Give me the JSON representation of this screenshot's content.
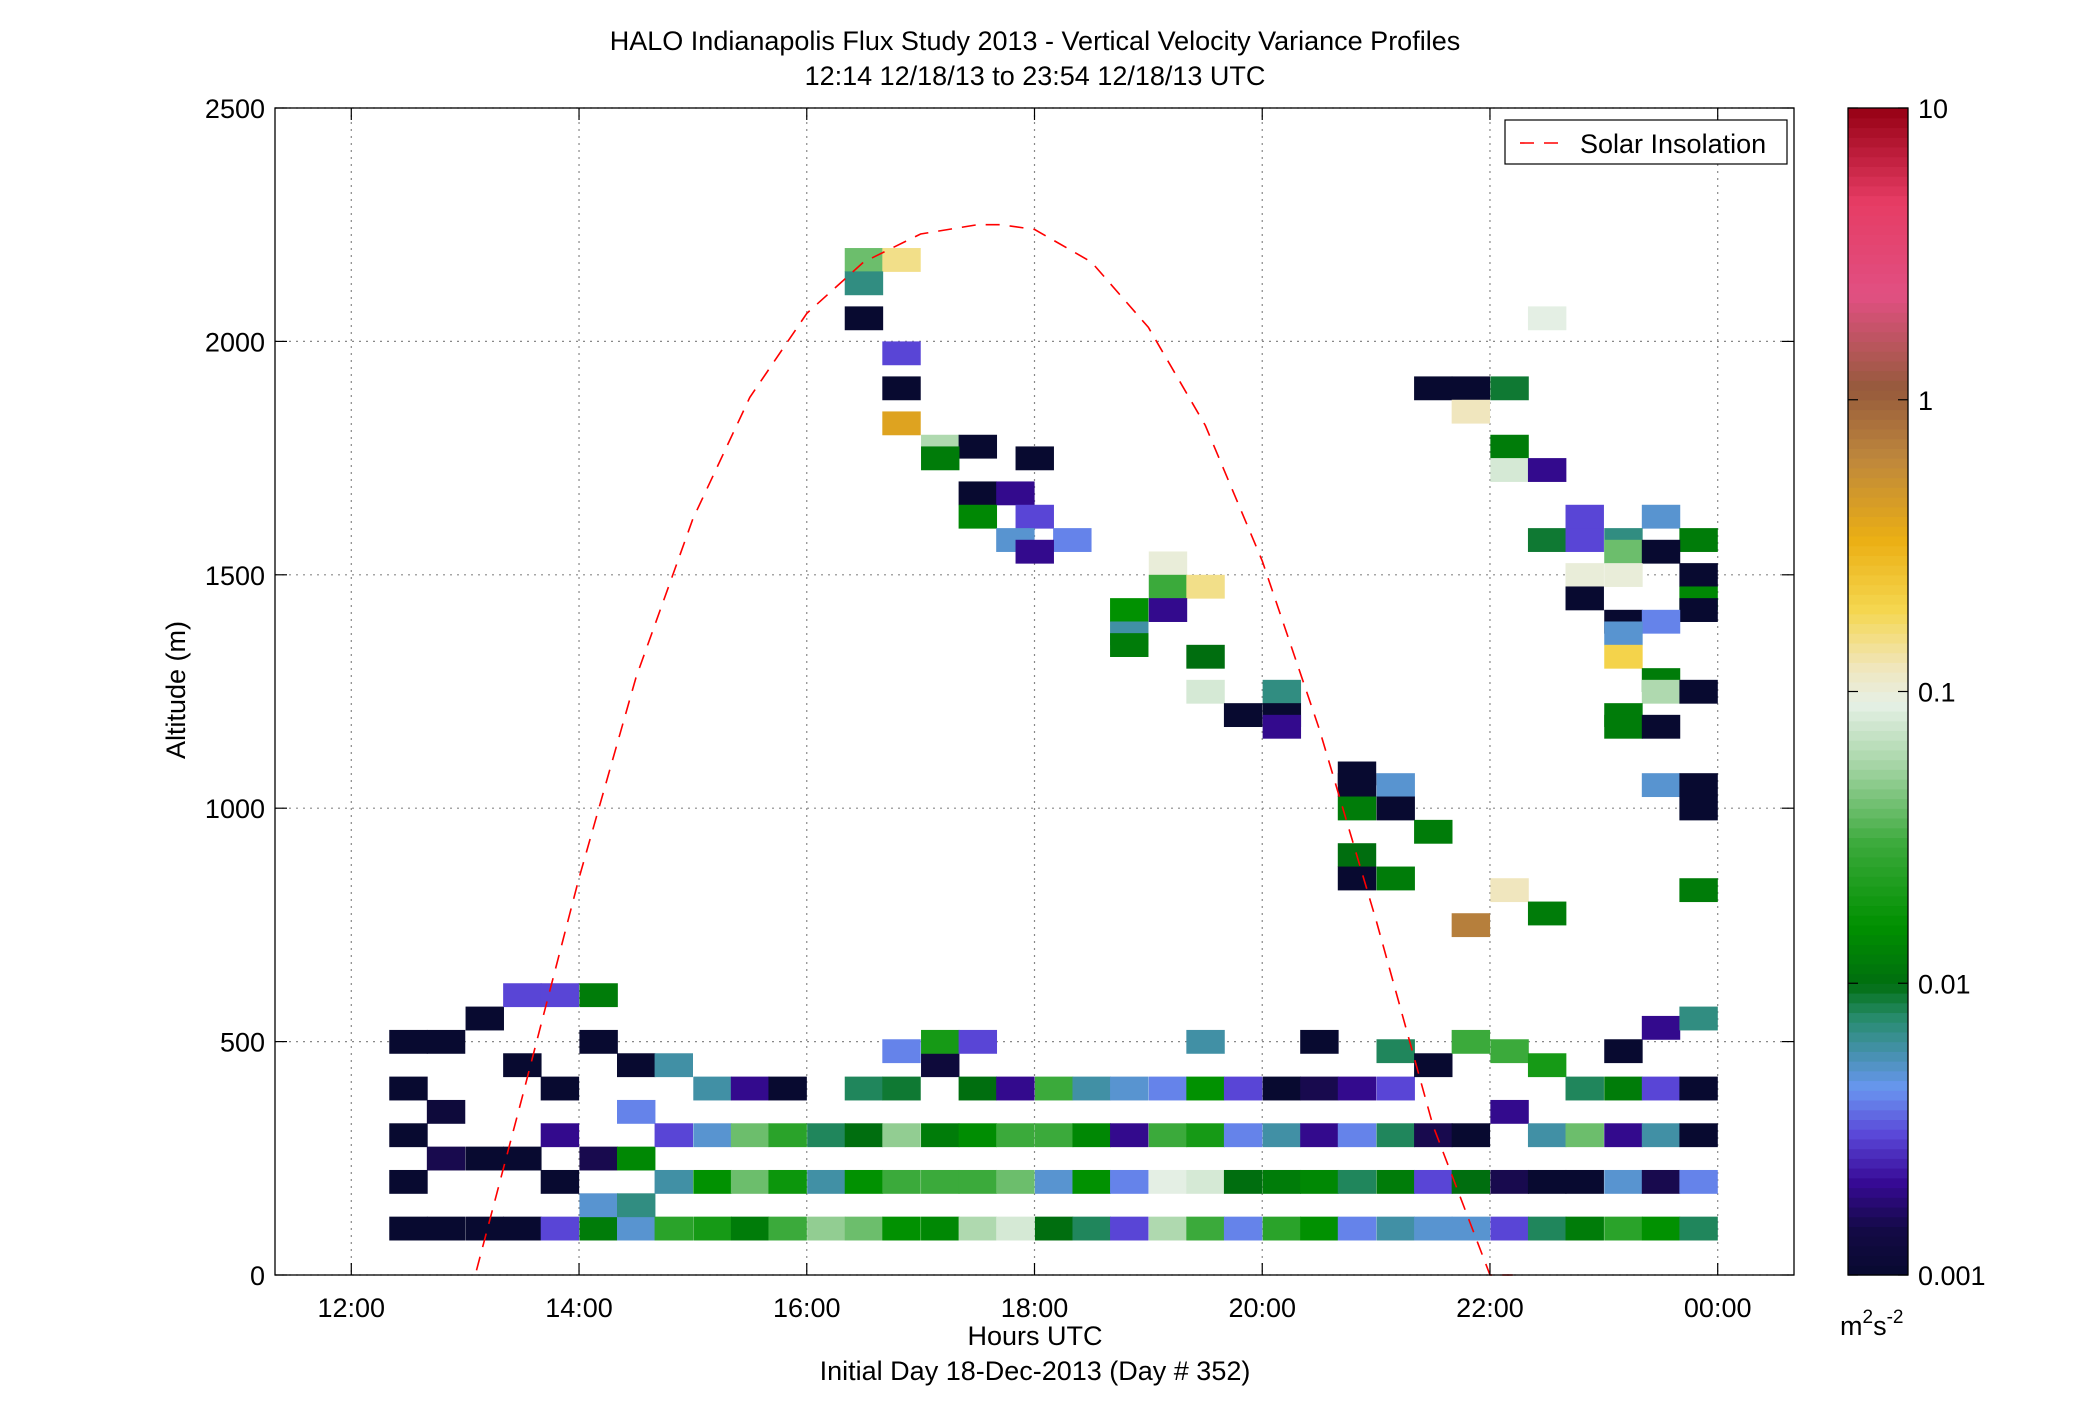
{
  "chart_data": {
    "type": "heatmap",
    "title": "HALO Indianapolis Flux Study 2013 - Vertical Velocity Variance Profiles",
    "subtitle": "12:14 12/18/13 to 23:54 12/18/13  UTC",
    "xlabel": "Hours UTC",
    "xlabel2": "Initial Day 18-Dec-2013 (Day # 352)",
    "ylabel": "Altitude (m)",
    "xlim": [
      11.33,
      24.67
    ],
    "ylim": [
      0,
      2500
    ],
    "x_ticks": [
      12,
      14,
      16,
      18,
      20,
      22,
      24
    ],
    "x_tick_labels": [
      "12:00",
      "14:00",
      "16:00",
      "18:00",
      "20:00",
      "22:00",
      "00:00"
    ],
    "y_ticks": [
      0,
      500,
      1000,
      1500,
      2000,
      2500
    ],
    "y_tick_labels": [
      "0",
      "500",
      "1000",
      "1500",
      "2000",
      "2500"
    ],
    "grid": true,
    "legend": {
      "placement": "top-right",
      "entries": [
        "Solar Insolation"
      ]
    },
    "colorbar": {
      "scale": "log",
      "range": [
        0.001,
        10
      ],
      "ticks": [
        0.001,
        0.01,
        0.1,
        1,
        10
      ],
      "tick_labels": [
        "0.001",
        "0.01",
        "0.1",
        "1",
        "10"
      ],
      "unit_base": "m",
      "unit_exp1": "2",
      "unit_mid": "s",
      "unit_exp2": "-2"
    },
    "solar_insolation_curve": {
      "color": "#ff0000",
      "style": "dashed",
      "x": [
        13.1,
        13.5,
        14,
        14.5,
        15,
        15.5,
        16,
        16.5,
        17,
        17.5,
        17.7,
        18,
        18.5,
        19,
        19.5,
        20,
        20.5,
        21,
        21.5,
        22,
        22.2
      ],
      "y": [
        10,
        380,
        850,
        1280,
        1620,
        1880,
        2060,
        2170,
        2230,
        2250,
        2250,
        2240,
        2170,
        2030,
        1820,
        1530,
        1170,
        760,
        320,
        -110,
        -300
      ]
    },
    "cell_width_hours": 0.333,
    "cell_height_m": 50,
    "cells": [
      {
        "t": 12.5,
        "z": 100,
        "v": 0.001
      },
      {
        "t": 12.5,
        "z": 200,
        "v": 0.001
      },
      {
        "t": 12.5,
        "z": 300,
        "v": 0.001
      },
      {
        "t": 12.5,
        "z": 400,
        "v": 0.001
      },
      {
        "t": 12.5,
        "z": 500,
        "v": 0.001
      },
      {
        "t": 12.83,
        "z": 100,
        "v": 0.001
      },
      {
        "t": 12.83,
        "z": 250,
        "v": 0.0015
      },
      {
        "t": 12.83,
        "z": 350,
        "v": 0.0012
      },
      {
        "t": 12.83,
        "z": 500,
        "v": 0.001
      },
      {
        "t": 13.17,
        "z": 100,
        "v": 0.001
      },
      {
        "t": 13.17,
        "z": 250,
        "v": 0.001
      },
      {
        "t": 13.17,
        "z": 550,
        "v": 0.001
      },
      {
        "t": 13.5,
        "z": 100,
        "v": 0.001
      },
      {
        "t": 13.5,
        "z": 250,
        "v": 0.001
      },
      {
        "t": 13.5,
        "z": 450,
        "v": 0.001
      },
      {
        "t": 13.5,
        "z": 600,
        "v": 0.003
      },
      {
        "t": 13.83,
        "z": 100,
        "v": 0.003
      },
      {
        "t": 13.83,
        "z": 200,
        "v": 0.001
      },
      {
        "t": 13.83,
        "z": 300,
        "v": 0.002
      },
      {
        "t": 13.83,
        "z": 400,
        "v": 0.001
      },
      {
        "t": 13.83,
        "z": 600,
        "v": 0.003
      },
      {
        "t": 14.17,
        "z": 100,
        "v": 0.012
      },
      {
        "t": 14.17,
        "z": 150,
        "v": 0.005
      },
      {
        "t": 14.17,
        "z": 250,
        "v": 0.0015
      },
      {
        "t": 14.17,
        "z": 500,
        "v": 0.001
      },
      {
        "t": 14.17,
        "z": 600,
        "v": 0.012
      },
      {
        "t": 14.5,
        "z": 100,
        "v": 0.005
      },
      {
        "t": 14.5,
        "z": 150,
        "v": 0.007
      },
      {
        "t": 14.5,
        "z": 250,
        "v": 0.014
      },
      {
        "t": 14.5,
        "z": 350,
        "v": 0.004
      },
      {
        "t": 14.5,
        "z": 450,
        "v": 0.001
      },
      {
        "t": 14.83,
        "z": 100,
        "v": 0.025
      },
      {
        "t": 14.83,
        "z": 200,
        "v": 0.006
      },
      {
        "t": 14.83,
        "z": 300,
        "v": 0.003
      },
      {
        "t": 14.83,
        "z": 450,
        "v": 0.006
      },
      {
        "t": 15.17,
        "z": 100,
        "v": 0.02
      },
      {
        "t": 15.17,
        "z": 200,
        "v": 0.016
      },
      {
        "t": 15.17,
        "z": 300,
        "v": 0.005
      },
      {
        "t": 15.17,
        "z": 400,
        "v": 0.006
      },
      {
        "t": 15.5,
        "z": 100,
        "v": 0.012
      },
      {
        "t": 15.5,
        "z": 200,
        "v": 0.04
      },
      {
        "t": 15.5,
        "z": 300,
        "v": 0.04
      },
      {
        "t": 15.5,
        "z": 400,
        "v": 0.002
      },
      {
        "t": 15.83,
        "z": 100,
        "v": 0.03
      },
      {
        "t": 15.83,
        "z": 200,
        "v": 0.018
      },
      {
        "t": 15.83,
        "z": 300,
        "v": 0.025
      },
      {
        "t": 15.83,
        "z": 400,
        "v": 0.001
      },
      {
        "t": 16.17,
        "z": 100,
        "v": 0.05
      },
      {
        "t": 16.17,
        "z": 200,
        "v": 0.006
      },
      {
        "t": 16.17,
        "z": 300,
        "v": 0.008
      },
      {
        "t": 16.5,
        "z": 100,
        "v": 0.04
      },
      {
        "t": 16.5,
        "z": 200,
        "v": 0.016
      },
      {
        "t": 16.5,
        "z": 300,
        "v": 0.01
      },
      {
        "t": 16.5,
        "z": 400,
        "v": 0.008
      },
      {
        "t": 16.83,
        "z": 100,
        "v": 0.016
      },
      {
        "t": 16.83,
        "z": 200,
        "v": 0.03
      },
      {
        "t": 16.83,
        "z": 300,
        "v": 0.05
      },
      {
        "t": 16.83,
        "z": 400,
        "v": 0.009
      },
      {
        "t": 16.83,
        "z": 480,
        "v": 0.004
      },
      {
        "t": 17.17,
        "z": 100,
        "v": 0.014
      },
      {
        "t": 17.17,
        "z": 200,
        "v": 0.03
      },
      {
        "t": 17.17,
        "z": 300,
        "v": 0.012
      },
      {
        "t": 17.17,
        "z": 450,
        "v": 0.0012
      },
      {
        "t": 17.17,
        "z": 500,
        "v": 0.02
      },
      {
        "t": 17.5,
        "z": 100,
        "v": 0.06
      },
      {
        "t": 17.5,
        "z": 200,
        "v": 0.03
      },
      {
        "t": 17.5,
        "z": 300,
        "v": 0.015
      },
      {
        "t": 17.5,
        "z": 400,
        "v": 0.01
      },
      {
        "t": 17.5,
        "z": 500,
        "v": 0.003
      },
      {
        "t": 17.83,
        "z": 100,
        "v": 0.08
      },
      {
        "t": 17.83,
        "z": 200,
        "v": 0.04
      },
      {
        "t": 17.83,
        "z": 300,
        "v": 0.03
      },
      {
        "t": 17.83,
        "z": 400,
        "v": 0.002
      },
      {
        "t": 18.17,
        "z": 100,
        "v": 0.01
      },
      {
        "t": 18.17,
        "z": 200,
        "v": 0.005
      },
      {
        "t": 18.17,
        "z": 300,
        "v": 0.03
      },
      {
        "t": 18.17,
        "z": 400,
        "v": 0.03
      },
      {
        "t": 18.5,
        "z": 100,
        "v": 0.008
      },
      {
        "t": 18.5,
        "z": 200,
        "v": 0.016
      },
      {
        "t": 18.5,
        "z": 300,
        "v": 0.014
      },
      {
        "t": 18.5,
        "z": 400,
        "v": 0.006
      },
      {
        "t": 18.83,
        "z": 100,
        "v": 0.003
      },
      {
        "t": 18.83,
        "z": 200,
        "v": 0.004
      },
      {
        "t": 18.83,
        "z": 300,
        "v": 0.002
      },
      {
        "t": 18.83,
        "z": 400,
        "v": 0.005
      },
      {
        "t": 19.17,
        "z": 100,
        "v": 0.06
      },
      {
        "t": 19.17,
        "z": 200,
        "v": 0.09
      },
      {
        "t": 19.17,
        "z": 300,
        "v": 0.03
      },
      {
        "t": 19.17,
        "z": 400,
        "v": 0.004
      },
      {
        "t": 19.5,
        "z": 100,
        "v": 0.03
      },
      {
        "t": 19.5,
        "z": 200,
        "v": 0.08
      },
      {
        "t": 19.5,
        "z": 300,
        "v": 0.02
      },
      {
        "t": 19.5,
        "z": 400,
        "v": 0.016
      },
      {
        "t": 19.5,
        "z": 500,
        "v": 0.006
      },
      {
        "t": 19.83,
        "z": 100,
        "v": 0.004
      },
      {
        "t": 19.83,
        "z": 200,
        "v": 0.01
      },
      {
        "t": 19.83,
        "z": 300,
        "v": 0.004
      },
      {
        "t": 19.83,
        "z": 400,
        "v": 0.003
      },
      {
        "t": 20.17,
        "z": 100,
        "v": 0.025
      },
      {
        "t": 20.17,
        "z": 200,
        "v": 0.012
      },
      {
        "t": 20.17,
        "z": 300,
        "v": 0.006
      },
      {
        "t": 20.17,
        "z": 400,
        "v": 0.001
      },
      {
        "t": 20.5,
        "z": 100,
        "v": 0.016
      },
      {
        "t": 20.5,
        "z": 200,
        "v": 0.014
      },
      {
        "t": 20.5,
        "z": 300,
        "v": 0.002
      },
      {
        "t": 20.5,
        "z": 400,
        "v": 0.0015
      },
      {
        "t": 20.5,
        "z": 500,
        "v": 0.001
      },
      {
        "t": 20.83,
        "z": 100,
        "v": 0.004
      },
      {
        "t": 20.83,
        "z": 200,
        "v": 0.008
      },
      {
        "t": 20.83,
        "z": 300,
        "v": 0.004
      },
      {
        "t": 20.83,
        "z": 400,
        "v": 0.002
      },
      {
        "t": 21.17,
        "z": 100,
        "v": 0.006
      },
      {
        "t": 21.17,
        "z": 200,
        "v": 0.012
      },
      {
        "t": 21.17,
        "z": 300,
        "v": 0.008
      },
      {
        "t": 21.17,
        "z": 400,
        "v": 0.003
      },
      {
        "t": 21.17,
        "z": 480,
        "v": 0.008
      },
      {
        "t": 21.5,
        "z": 100,
        "v": 0.005
      },
      {
        "t": 21.5,
        "z": 200,
        "v": 0.003
      },
      {
        "t": 21.5,
        "z": 300,
        "v": 0.0015
      },
      {
        "t": 21.5,
        "z": 450,
        "v": 0.001
      },
      {
        "t": 21.83,
        "z": 100,
        "v": 0.005
      },
      {
        "t": 21.83,
        "z": 200,
        "v": 0.01
      },
      {
        "t": 21.83,
        "z": 300,
        "v": 0.001
      },
      {
        "t": 21.83,
        "z": 500,
        "v": 0.03
      },
      {
        "t": 22.17,
        "z": 100,
        "v": 0.003
      },
      {
        "t": 22.17,
        "z": 200,
        "v": 0.0015
      },
      {
        "t": 22.17,
        "z": 350,
        "v": 0.002
      },
      {
        "t": 22.17,
        "z": 480,
        "v": 0.03
      },
      {
        "t": 22.5,
        "z": 100,
        "v": 0.008
      },
      {
        "t": 22.5,
        "z": 200,
        "v": 0.001
      },
      {
        "t": 22.5,
        "z": 300,
        "v": 0.006
      },
      {
        "t": 22.5,
        "z": 450,
        "v": 0.02
      },
      {
        "t": 22.83,
        "z": 100,
        "v": 0.012
      },
      {
        "t": 22.83,
        "z": 200,
        "v": 0.001
      },
      {
        "t": 22.83,
        "z": 300,
        "v": 0.04
      },
      {
        "t": 22.83,
        "z": 400,
        "v": 0.008
      },
      {
        "t": 23.17,
        "z": 100,
        "v": 0.025
      },
      {
        "t": 23.17,
        "z": 200,
        "v": 0.005
      },
      {
        "t": 23.17,
        "z": 300,
        "v": 0.002
      },
      {
        "t": 23.17,
        "z": 400,
        "v": 0.012
      },
      {
        "t": 23.17,
        "z": 480,
        "v": 0.001
      },
      {
        "t": 23.5,
        "z": 100,
        "v": 0.016
      },
      {
        "t": 23.5,
        "z": 200,
        "v": 0.0015
      },
      {
        "t": 23.5,
        "z": 300,
        "v": 0.006
      },
      {
        "t": 23.5,
        "z": 400,
        "v": 0.003
      },
      {
        "t": 23.5,
        "z": 530,
        "v": 0.002
      },
      {
        "t": 23.83,
        "z": 100,
        "v": 0.008
      },
      {
        "t": 23.83,
        "z": 200,
        "v": 0.004
      },
      {
        "t": 23.83,
        "z": 300,
        "v": 0.001
      },
      {
        "t": 23.83,
        "z": 400,
        "v": 0.001
      },
      {
        "t": 23.83,
        "z": 550,
        "v": 0.007
      },
      {
        "t": 16.5,
        "z": 2175,
        "v": 0.04
      },
      {
        "t": 16.83,
        "z": 2175,
        "v": 0.15
      },
      {
        "t": 16.5,
        "z": 2125,
        "v": 0.007
      },
      {
        "t": 16.5,
        "z": 2050,
        "v": 0.001
      },
      {
        "t": 16.83,
        "z": 1975,
        "v": 0.003
      },
      {
        "t": 16.83,
        "z": 1900,
        "v": 0.001
      },
      {
        "t": 16.83,
        "z": 1825,
        "v": 0.4
      },
      {
        "t": 17.17,
        "z": 1775,
        "v": 0.06
      },
      {
        "t": 17.5,
        "z": 1775,
        "v": 0.001
      },
      {
        "t": 17.17,
        "z": 1750,
        "v": 0.012
      },
      {
        "t": 18.0,
        "z": 1750,
        "v": 0.001
      },
      {
        "t": 17.5,
        "z": 1675,
        "v": 0.001
      },
      {
        "t": 17.83,
        "z": 1675,
        "v": 0.002
      },
      {
        "t": 17.5,
        "z": 1625,
        "v": 0.014
      },
      {
        "t": 18.0,
        "z": 1625,
        "v": 0.003
      },
      {
        "t": 17.83,
        "z": 1575,
        "v": 0.005
      },
      {
        "t": 18.33,
        "z": 1575,
        "v": 0.004
      },
      {
        "t": 18.0,
        "z": 1550,
        "v": 0.002
      },
      {
        "t": 19.17,
        "z": 1525,
        "v": 0.1
      },
      {
        "t": 19.17,
        "z": 1475,
        "v": 0.03
      },
      {
        "t": 19.5,
        "z": 1475,
        "v": 0.15
      },
      {
        "t": 18.83,
        "z": 1425,
        "v": 0.016
      },
      {
        "t": 19.17,
        "z": 1425,
        "v": 0.002
      },
      {
        "t": 18.83,
        "z": 1375,
        "v": 0.006
      },
      {
        "t": 18.83,
        "z": 1350,
        "v": 0.012
      },
      {
        "t": 19.5,
        "z": 1325,
        "v": 0.01
      },
      {
        "t": 19.5,
        "z": 1250,
        "v": 0.08
      },
      {
        "t": 20.17,
        "z": 1250,
        "v": 0.007
      },
      {
        "t": 19.83,
        "z": 1200,
        "v": 0.001
      },
      {
        "t": 20.17,
        "z": 1200,
        "v": 0.001
      },
      {
        "t": 20.17,
        "z": 1175,
        "v": 0.002
      },
      {
        "t": 20.83,
        "z": 1075,
        "v": 0.001
      },
      {
        "t": 20.83,
        "z": 1050,
        "v": 0.001
      },
      {
        "t": 21.17,
        "z": 1050,
        "v": 0.005
      },
      {
        "t": 20.83,
        "z": 1000,
        "v": 0.012
      },
      {
        "t": 21.17,
        "z": 1000,
        "v": 0.001
      },
      {
        "t": 21.5,
        "z": 950,
        "v": 0.012
      },
      {
        "t": 20.83,
        "z": 900,
        "v": 0.01
      },
      {
        "t": 20.83,
        "z": 850,
        "v": 0.001
      },
      {
        "t": 21.17,
        "z": 850,
        "v": 0.012
      },
      {
        "t": 22.17,
        "z": 825,
        "v": 0.12
      },
      {
        "t": 22.5,
        "z": 775,
        "v": 0.012
      },
      {
        "t": 21.83,
        "z": 750,
        "v": 0.7
      },
      {
        "t": 21.5,
        "z": 1900,
        "v": 0.001
      },
      {
        "t": 21.83,
        "z": 1900,
        "v": 0.001
      },
      {
        "t": 22.17,
        "z": 1900,
        "v": 0.009
      },
      {
        "t": 21.83,
        "z": 1850,
        "v": 0.12
      },
      {
        "t": 22.17,
        "z": 1775,
        "v": 0.012
      },
      {
        "t": 22.17,
        "z": 1725,
        "v": 0.08
      },
      {
        "t": 22.5,
        "z": 1725,
        "v": 0.002
      },
      {
        "t": 22.5,
        "z": 2050,
        "v": 0.09
      },
      {
        "t": 22.83,
        "z": 1625,
        "v": 0.003
      },
      {
        "t": 23.5,
        "z": 1625,
        "v": 0.005
      },
      {
        "t": 22.5,
        "z": 1575,
        "v": 0.009
      },
      {
        "t": 22.83,
        "z": 1575,
        "v": 0.003
      },
      {
        "t": 23.17,
        "z": 1575,
        "v": 0.007
      },
      {
        "t": 23.83,
        "z": 1575,
        "v": 0.012
      },
      {
        "t": 23.17,
        "z": 1550,
        "v": 0.04
      },
      {
        "t": 23.5,
        "z": 1550,
        "v": 0.001
      },
      {
        "t": 22.83,
        "z": 1500,
        "v": 0.1
      },
      {
        "t": 23.17,
        "z": 1500,
        "v": 0.1
      },
      {
        "t": 23.83,
        "z": 1500,
        "v": 0.001
      },
      {
        "t": 22.83,
        "z": 1450,
        "v": 0.001
      },
      {
        "t": 23.83,
        "z": 1450,
        "v": 0.014
      },
      {
        "t": 23.83,
        "z": 1425,
        "v": 0.001
      },
      {
        "t": 23.17,
        "z": 1400,
        "v": 0.001
      },
      {
        "t": 23.5,
        "z": 1400,
        "v": 0.004
      },
      {
        "t": 23.17,
        "z": 1375,
        "v": 0.005
      },
      {
        "t": 23.17,
        "z": 1325,
        "v": 0.2
      },
      {
        "t": 23.5,
        "z": 1275,
        "v": 0.012
      },
      {
        "t": 23.5,
        "z": 1250,
        "v": 0.06
      },
      {
        "t": 23.83,
        "z": 1250,
        "v": 0.001
      },
      {
        "t": 23.17,
        "z": 1200,
        "v": 0.012
      },
      {
        "t": 23.17,
        "z": 1175,
        "v": 0.012
      },
      {
        "t": 23.5,
        "z": 1175,
        "v": 0.001
      },
      {
        "t": 23.5,
        "z": 1050,
        "v": 0.005
      },
      {
        "t": 23.83,
        "z": 1050,
        "v": 0.001
      },
      {
        "t": 23.83,
        "z": 1000,
        "v": 0.001
      },
      {
        "t": 23.83,
        "z": 825,
        "v": 0.012
      }
    ]
  }
}
